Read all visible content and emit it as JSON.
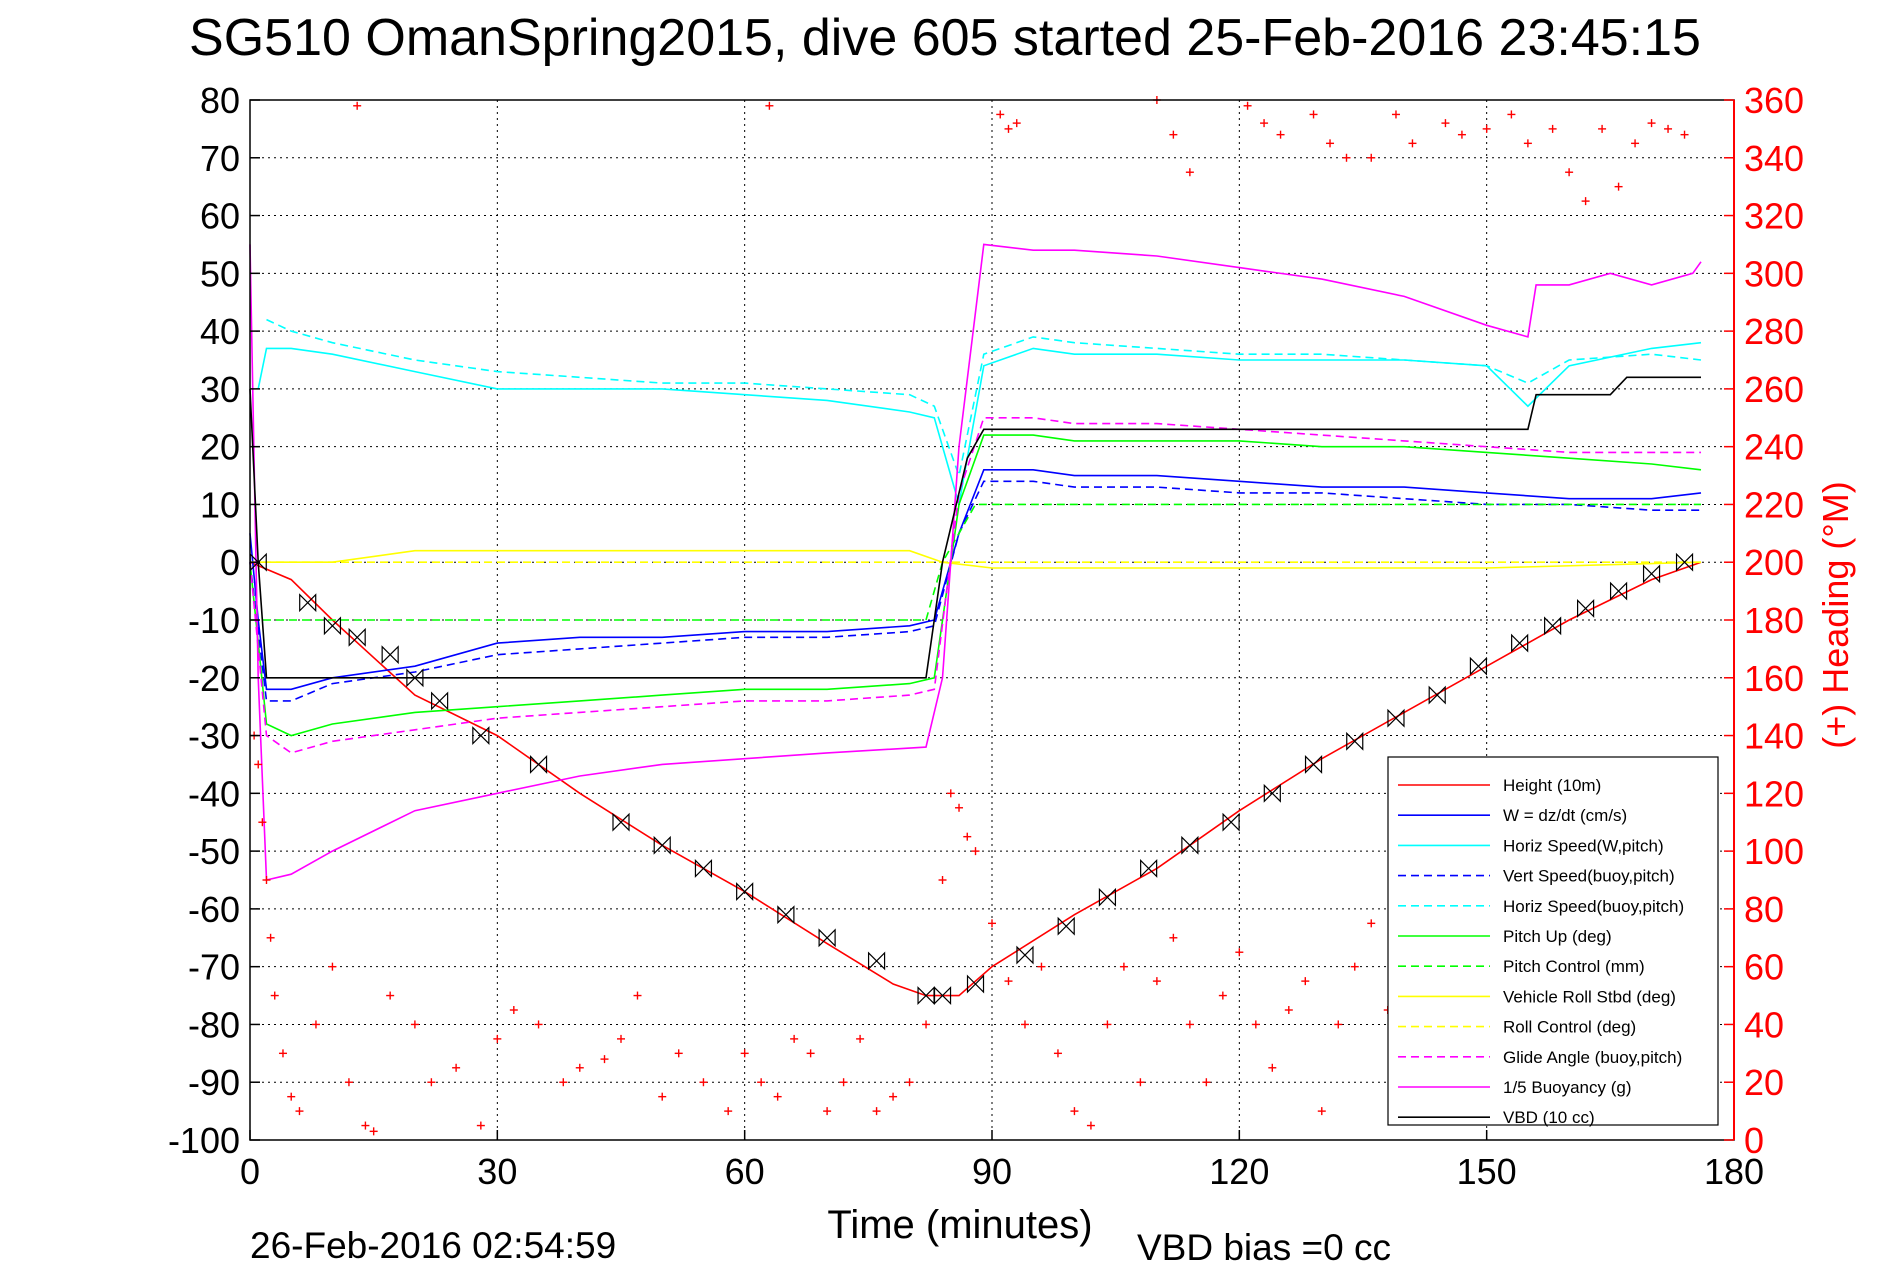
{
  "figure": {
    "title": "SG510 OmanSpring2015, dive 605 started 25-Feb-2016 23:45:15",
    "footer_timestamp": "26-Feb-2016 02:54:59",
    "footer_note": "VBD bias =0 cc",
    "colors": {
      "height": "#ff0000",
      "w": "#0000ff",
      "horiz": "#00ffff",
      "pitch": "#00ff00",
      "roll": "#ffff00",
      "glide": "#ff00ff",
      "buoy": "#ff00ff",
      "vbd": "#000000",
      "heading_axis": "#ff0000"
    }
  },
  "chart_data": {
    "type": "line",
    "xlabel": "Time (minutes)",
    "y2label": "(+) Heading (°M)",
    "xlim": [
      0,
      180
    ],
    "ylim": [
      -100,
      80
    ],
    "y2lim": [
      0,
      360
    ],
    "x_ticks": [
      0,
      30,
      60,
      90,
      120,
      150,
      180
    ],
    "y_ticks": [
      -100,
      -90,
      -80,
      -70,
      -60,
      -50,
      -40,
      -30,
      -20,
      -10,
      0,
      10,
      20,
      30,
      40,
      50,
      60,
      70,
      80
    ],
    "y2_ticks": [
      0,
      20,
      40,
      60,
      80,
      100,
      120,
      140,
      160,
      180,
      200,
      220,
      240,
      260,
      280,
      300,
      320,
      340,
      360
    ],
    "grid": true,
    "legend_position": "bottom-right",
    "series": [
      {
        "name": "Height (10m)",
        "key": "height",
        "dash": "solid",
        "x": [
          0,
          5,
          10,
          20,
          30,
          40,
          50,
          60,
          70,
          78,
          82,
          86,
          90,
          100,
          110,
          120,
          130,
          140,
          150,
          160,
          170,
          176
        ],
        "y": [
          0,
          -3,
          -10,
          -23,
          -30,
          -40,
          -49,
          -57,
          -66,
          -73,
          -75,
          -75,
          -70,
          -61,
          -53,
          -43,
          -34,
          -26,
          -18,
          -10,
          -3,
          0
        ]
      },
      {
        "name": "W = dz/dt (cm/s)",
        "key": "w",
        "dash": "solid",
        "x": [
          0,
          1,
          2,
          5,
          10,
          20,
          30,
          40,
          50,
          60,
          70,
          80,
          83,
          86,
          89,
          95,
          100,
          110,
          120,
          130,
          140,
          150,
          160,
          170,
          176
        ],
        "y": [
          5,
          -10,
          -22,
          -22,
          -20,
          -18,
          -14,
          -13,
          -13,
          -12,
          -12,
          -11,
          -10,
          5,
          16,
          16,
          15,
          15,
          14,
          13,
          13,
          12,
          11,
          11,
          12
        ]
      },
      {
        "name": "Horiz Speed(W,pitch)",
        "key": "horiz",
        "dash": "solid",
        "x": [
          1,
          2,
          5,
          10,
          20,
          30,
          40,
          50,
          60,
          70,
          80,
          83,
          86,
          89,
          95,
          100,
          110,
          120,
          130,
          140,
          150,
          155,
          160,
          170,
          176
        ],
        "y": [
          30,
          37,
          37,
          36,
          33,
          30,
          30,
          30,
          29,
          28,
          26,
          25,
          10,
          34,
          37,
          36,
          36,
          35,
          35,
          35,
          34,
          27,
          34,
          37,
          38
        ]
      },
      {
        "name": "Vert Speed(buoy,pitch)",
        "key": "w",
        "dash": "dashed",
        "x": [
          0,
          2,
          5,
          10,
          20,
          30,
          40,
          50,
          60,
          70,
          80,
          83,
          86,
          89,
          95,
          100,
          110,
          120,
          130,
          140,
          150,
          160,
          170,
          176
        ],
        "y": [
          0,
          -24,
          -24,
          -21,
          -19,
          -16,
          -15,
          -14,
          -13,
          -13,
          -12,
          -11,
          5,
          14,
          14,
          13,
          13,
          12,
          12,
          11,
          10,
          10,
          9,
          9
        ]
      },
      {
        "name": "Horiz Speed(buoy,pitch)",
        "key": "horiz",
        "dash": "dashed",
        "x": [
          2,
          5,
          10,
          20,
          30,
          40,
          50,
          60,
          70,
          80,
          83,
          86,
          89,
          95,
          100,
          110,
          120,
          130,
          140,
          150,
          155,
          160,
          170,
          176
        ],
        "y": [
          42,
          40,
          38,
          35,
          33,
          32,
          31,
          31,
          30,
          29,
          27,
          15,
          36,
          39,
          38,
          37,
          36,
          36,
          35,
          34,
          31,
          35,
          36,
          35
        ]
      },
      {
        "name": "Pitch Up (deg)",
        "key": "pitch",
        "dash": "solid",
        "x": [
          0,
          2,
          5,
          10,
          20,
          30,
          40,
          50,
          60,
          70,
          80,
          83,
          86,
          89,
          95,
          100,
          110,
          120,
          130,
          140,
          150,
          160,
          170,
          176
        ],
        "y": [
          0,
          -28,
          -30,
          -28,
          -26,
          -25,
          -24,
          -23,
          -22,
          -22,
          -21,
          -20,
          10,
          22,
          22,
          21,
          21,
          21,
          20,
          20,
          19,
          18,
          17,
          16
        ]
      },
      {
        "name": "Pitch Control (mm)",
        "key": "pitch",
        "dash": "dashed",
        "x": [
          0,
          2,
          82,
          84,
          88,
          176
        ],
        "y": [
          -10,
          -10,
          -10,
          0,
          10,
          10
        ]
      },
      {
        "name": "Vehicle Roll Stbd (deg)",
        "key": "roll",
        "dash": "solid",
        "x": [
          0,
          5,
          10,
          20,
          40,
          60,
          80,
          84,
          90,
          120,
          150,
          176
        ],
        "y": [
          0,
          0,
          0,
          2,
          2,
          2,
          2,
          0,
          -1,
          -1,
          -1,
          0
        ]
      },
      {
        "name": "Roll Control (deg)",
        "key": "roll",
        "dash": "dashed",
        "x": [
          0,
          84,
          86,
          176
        ],
        "y": [
          0,
          0,
          0,
          0
        ]
      },
      {
        "name": "Glide Angle (buoy,pitch)",
        "key": "glide",
        "dash": "dashed",
        "x": [
          0,
          2,
          5,
          10,
          20,
          30,
          40,
          50,
          60,
          70,
          80,
          83,
          86,
          89,
          95,
          100,
          110,
          120,
          130,
          140,
          150,
          160,
          170,
          176
        ],
        "y": [
          0,
          -30,
          -33,
          -31,
          -29,
          -27,
          -26,
          -25,
          -24,
          -24,
          -23,
          -22,
          12,
          25,
          25,
          24,
          24,
          23,
          22,
          21,
          20,
          19,
          19,
          19
        ]
      },
      {
        "name": "1/5 Buoyancy (g)",
        "key": "buoy",
        "dash": "solid",
        "x": [
          0,
          1,
          2,
          5,
          10,
          20,
          30,
          40,
          50,
          60,
          70,
          82,
          84,
          86,
          89,
          95,
          100,
          110,
          120,
          130,
          140,
          150,
          155,
          156,
          160,
          165,
          170,
          175,
          176
        ],
        "y": [
          55,
          -20,
          -55,
          -54,
          -50,
          -43,
          -40,
          -37,
          -35,
          -34,
          -33,
          -32,
          -20,
          20,
          55,
          54,
          54,
          53,
          51,
          49,
          46,
          41,
          39,
          48,
          48,
          50,
          48,
          50,
          52
        ]
      },
      {
        "name": "VBD (10 cc)",
        "key": "vbd",
        "dash": "solid",
        "x": [
          0,
          1,
          2,
          20,
          40,
          60,
          82,
          84,
          87,
          89,
          100,
          120,
          140,
          155,
          156,
          165,
          167,
          176
        ],
        "y": [
          30,
          0,
          -20,
          -20,
          -20,
          -20,
          -20,
          0,
          18,
          23,
          23,
          23,
          23,
          23,
          29,
          29,
          32,
          32
        ]
      }
    ],
    "heading_points": {
      "name": "(+) Heading (°M)",
      "marker": "+",
      "x": [
        0.5,
        1,
        1.5,
        2,
        2.5,
        3,
        4,
        5,
        6,
        8,
        10,
        12,
        14,
        15,
        17,
        20,
        22,
        25,
        28,
        30,
        32,
        35,
        38,
        40,
        43,
        45,
        47,
        50,
        52,
        55,
        58,
        60,
        62,
        64,
        66,
        68,
        70,
        72,
        74,
        76,
        78,
        80,
        82,
        84,
        85,
        86,
        87,
        88,
        90,
        92,
        94,
        96,
        98,
        100,
        102,
        104,
        106,
        108,
        110,
        112,
        114,
        116,
        118,
        120,
        122,
        124,
        126,
        128,
        130,
        132,
        134,
        136,
        138,
        140,
        142,
        144,
        146,
        148,
        150,
        152,
        154,
        156,
        158,
        160,
        162,
        164,
        166,
        168,
        170,
        172,
        174
      ],
      "y": [
        140,
        130,
        110,
        90,
        70,
        50,
        30,
        15,
        10,
        40,
        60,
        20,
        5,
        3,
        50,
        40,
        20,
        25,
        5,
        35,
        45,
        40,
        20,
        25,
        28,
        35,
        50,
        15,
        30,
        20,
        10,
        30,
        20,
        15,
        35,
        30,
        10,
        20,
        35,
        10,
        15,
        20,
        40,
        90,
        120,
        115,
        105,
        100,
        75,
        55,
        40,
        60,
        30,
        10,
        5,
        40,
        60,
        20,
        55,
        70,
        40,
        20,
        50,
        65,
        40,
        25,
        45,
        55,
        10,
        40,
        60,
        75,
        45,
        30,
        55,
        70,
        40,
        60,
        80,
        50,
        30,
        55,
        70,
        45,
        75,
        60,
        80,
        65,
        70,
        75,
        80
      ]
    },
    "heading_points_top": {
      "x": [
        13,
        63,
        91,
        92,
        93,
        110,
        112,
        114,
        121,
        123,
        125,
        129,
        131,
        133,
        136,
        139,
        141,
        145,
        147,
        150,
        153,
        155,
        158,
        160,
        162,
        164,
        166,
        168,
        170,
        172,
        174
      ],
      "y": [
        358,
        358,
        355,
        350,
        352,
        360,
        348,
        335,
        358,
        352,
        348,
        355,
        345,
        340,
        340,
        355,
        345,
        352,
        348,
        350,
        355,
        345,
        350,
        335,
        325,
        350,
        330,
        345,
        352,
        350,
        348
      ]
    },
    "height_markers": {
      "marker": "bowtie",
      "x": [
        1,
        7,
        10,
        13,
        17,
        20,
        23,
        28,
        35,
        45,
        50,
        55,
        60,
        65,
        70,
        76,
        82,
        84,
        88,
        94,
        99,
        104,
        109,
        114,
        119,
        124,
        129,
        134,
        139,
        144,
        149,
        154,
        158,
        162,
        166,
        170,
        174
      ],
      "y": [
        0,
        -7,
        -11,
        -13,
        -16,
        -20,
        -24,
        -30,
        -35,
        -45,
        -49,
        -53,
        -57,
        -61,
        -65,
        -69,
        -75,
        -75,
        -73,
        -68,
        -63,
        -58,
        -53,
        -49,
        -45,
        -40,
        -35,
        -31,
        -27,
        -23,
        -18,
        -14,
        -11,
        -8,
        -5,
        -2,
        0
      ]
    }
  }
}
